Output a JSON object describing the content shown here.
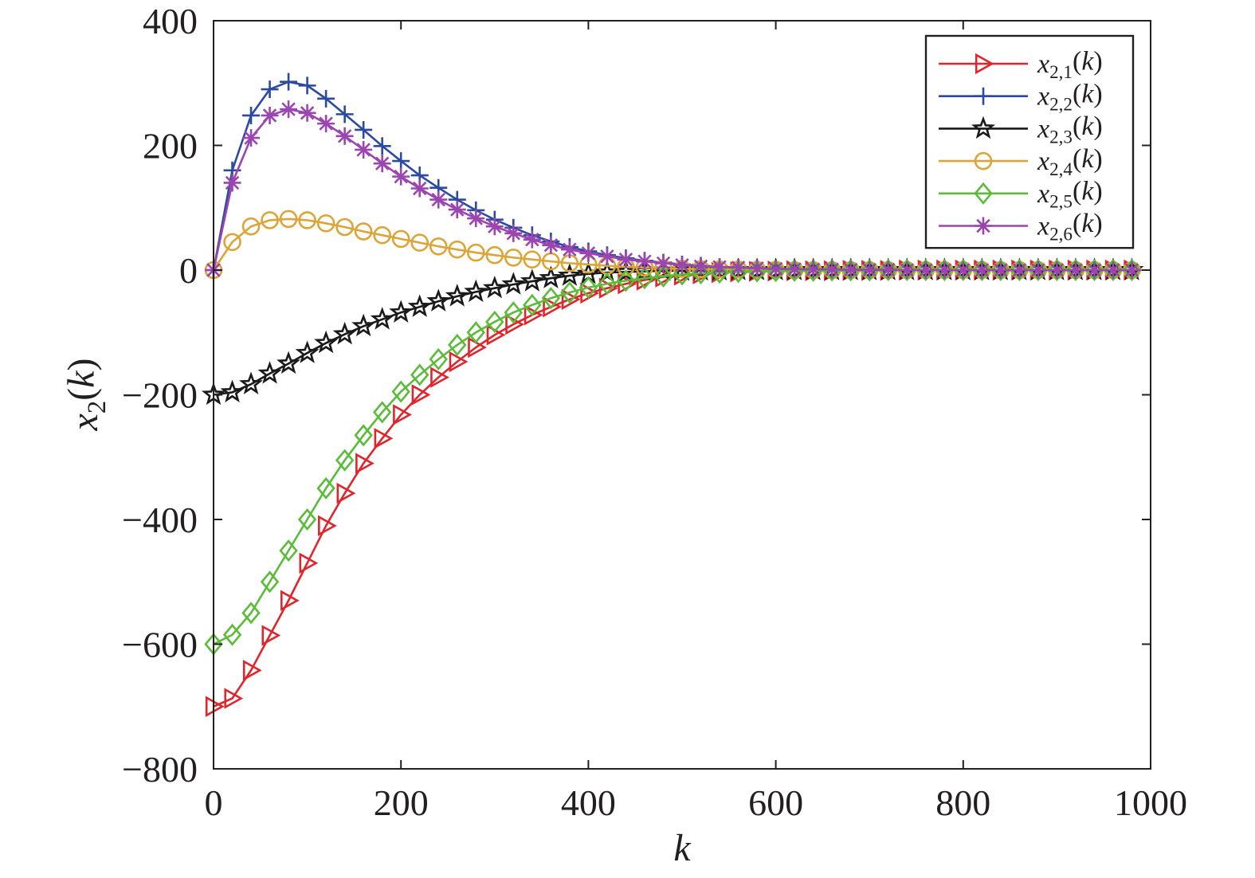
{
  "chart_data": {
    "type": "line",
    "title": "",
    "xlabel": {
      "base": "k"
    },
    "ylabel": {
      "base": "x",
      "sub": "2",
      "arg": "(k)"
    },
    "xlim": [
      0,
      1000
    ],
    "ylim": [
      -800,
      400
    ],
    "x_ticks": [
      0,
      200,
      400,
      600,
      800,
      1000
    ],
    "y_ticks": [
      -800,
      -600,
      -400,
      -200,
      0,
      200,
      400
    ],
    "grid": false,
    "legend_position": "top-right",
    "x": [
      0,
      20,
      40,
      60,
      80,
      100,
      120,
      140,
      160,
      180,
      200,
      220,
      240,
      260,
      280,
      300,
      320,
      340,
      360,
      380,
      400,
      420,
      440,
      460,
      480,
      500,
      520,
      540,
      560,
      580,
      600,
      620,
      640,
      660,
      680,
      700,
      720,
      740,
      760,
      780,
      800,
      820,
      840,
      860,
      880,
      900,
      920,
      940,
      960,
      980
    ],
    "series": [
      {
        "legend": {
          "base": "x",
          "sub": "2,1",
          "arg": "(k)"
        },
        "color": "#e0262d",
        "marker": "triangle-right",
        "values": [
          -700,
          -687,
          -642,
          -586,
          -530,
          -470,
          -410,
          -358,
          -310,
          -270,
          -232,
          -200,
          -172,
          -147,
          -124,
          -104,
          -87,
          -72,
          -59,
          -47,
          -37,
          -29,
          -22,
          -16,
          -11,
          -8,
          -6,
          -4,
          -3,
          -2,
          -1.5,
          -1,
          -1,
          -1,
          -0.5,
          -0.5,
          -0.5,
          0,
          0,
          0,
          0,
          0,
          0,
          0,
          0,
          0,
          0,
          0,
          0,
          0
        ]
      },
      {
        "legend": {
          "base": "x",
          "sub": "2,2",
          "arg": "(k)"
        },
        "color": "#2b4aa0",
        "marker": "plus",
        "values": [
          0,
          160,
          248,
          290,
          302,
          296,
          275,
          250,
          225,
          199,
          175,
          152,
          132,
          113,
          96,
          81,
          68,
          56,
          46,
          37,
          30,
          24,
          19,
          15,
          12,
          9,
          7,
          5,
          4,
          3,
          2,
          1.5,
          1,
          1,
          0.5,
          0.5,
          0.5,
          0,
          0,
          0,
          0,
          0,
          0,
          0,
          0,
          0,
          0,
          0,
          0,
          0
        ]
      },
      {
        "legend": {
          "base": "x",
          "sub": "2,3",
          "arg": "(k)"
        },
        "color": "#1a1a1a",
        "marker": "star",
        "values": [
          -200,
          -196,
          -183,
          -166,
          -150,
          -133,
          -117,
          -103,
          -90,
          -79,
          -68,
          -59,
          -50,
          -42,
          -35,
          -29,
          -23,
          -18,
          -13,
          -9,
          -6,
          -4,
          -3,
          -2,
          -1,
          -1,
          -0.5,
          -0.5,
          0,
          0,
          0,
          0,
          0,
          0,
          0,
          0,
          0,
          0,
          0,
          0,
          0,
          0,
          0,
          0,
          0,
          0,
          0,
          0,
          0,
          0
        ]
      },
      {
        "legend": {
          "base": "x",
          "sub": "2,4",
          "arg": "(k)"
        },
        "color": "#dba537",
        "marker": "circle",
        "values": [
          0,
          45,
          70,
          80,
          82,
          80,
          75,
          69,
          62,
          56,
          50,
          44,
          38,
          33,
          28,
          24,
          20,
          17,
          14,
          11,
          9,
          7,
          5,
          4,
          3,
          2,
          1.5,
          1,
          1,
          0.5,
          0.5,
          0,
          0,
          0,
          0,
          0,
          0,
          0,
          0,
          0,
          0,
          0,
          0,
          0,
          0,
          0,
          0,
          0,
          0,
          0
        ]
      },
      {
        "legend": {
          "base": "x",
          "sub": "2,5",
          "arg": "(k)"
        },
        "color": "#5bbc3a",
        "marker": "diamond",
        "values": [
          -600,
          -585,
          -550,
          -500,
          -450,
          -400,
          -350,
          -305,
          -265,
          -228,
          -195,
          -168,
          -143,
          -120,
          -100,
          -83,
          -68,
          -56,
          -45,
          -36,
          -28,
          -22,
          -17,
          -13,
          -10,
          -7,
          -5,
          -4,
          -3,
          -2,
          -1.5,
          -1,
          -1,
          -0.5,
          -0.5,
          -0.5,
          0,
          0,
          0,
          0,
          0,
          0,
          0,
          0,
          0,
          0,
          0,
          0,
          0,
          0
        ]
      },
      {
        "legend": {
          "base": "x",
          "sub": "2,6",
          "arg": "(k)"
        },
        "color": "#9b45b0",
        "marker": "asterisk",
        "values": [
          0,
          140,
          212,
          248,
          258,
          252,
          235,
          215,
          193,
          171,
          150,
          131,
          113,
          97,
          83,
          70,
          59,
          49,
          40,
          33,
          27,
          22,
          17,
          14,
          11,
          8,
          6,
          5,
          4,
          3,
          2,
          1.5,
          1,
          1,
          0.5,
          0.5,
          0.5,
          0,
          0,
          0,
          0,
          0,
          0,
          0,
          0,
          0,
          0,
          0,
          0,
          0
        ]
      }
    ]
  }
}
